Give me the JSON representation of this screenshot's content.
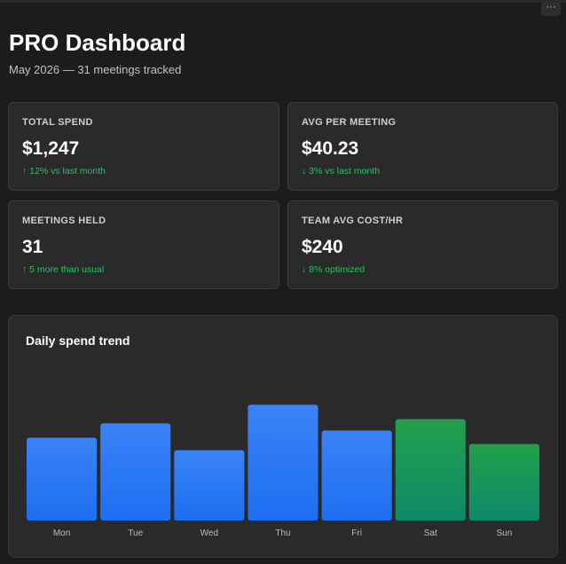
{
  "header": {
    "title": "PRO Dashboard",
    "subtitle": "May 2026 — 31 meetings tracked",
    "menu_icon": "more-horizontal-icon",
    "menu_glyph": "···"
  },
  "stats": [
    {
      "label": "TOTAL SPEND",
      "value": "$1,247",
      "delta": "↑ 12% vs last month",
      "delta_color": "#22c55e"
    },
    {
      "label": "AVG PER MEETING",
      "value": "$40.23",
      "delta": "↓ 3% vs last month",
      "delta_color": "#22c55e"
    },
    {
      "label": "MEETINGS HELD",
      "value": "31",
      "delta": "↑ 5 more than usual",
      "delta_color": "#22c55e"
    },
    {
      "label": "TEAM AVG COST/HR",
      "value": "$240",
      "delta": "↓ 8% optimized",
      "delta_color": "#22c55e"
    }
  ],
  "chart_title": "Daily spend trend",
  "chart_data": {
    "type": "bar",
    "title": "Daily spend trend",
    "categories": [
      "Mon",
      "Tue",
      "Wed",
      "Thu",
      "Fri",
      "Sat",
      "Sun"
    ],
    "values": [
      80,
      94,
      68,
      112,
      87,
      98,
      74
    ],
    "ylim": [
      0,
      180
    ],
    "grid": false,
    "colors": {
      "weekday_top": "#3b82f6",
      "weekday_bottom": "#1d6ff2",
      "weekend_top": "#22a04b",
      "weekend_bottom": "#0e8a6a"
    },
    "weekend": [
      "Sat",
      "Sun"
    ]
  },
  "colors": {
    "background": "#1c1c1c",
    "card": "#2a2a2a",
    "accent_green": "#22c55e"
  }
}
